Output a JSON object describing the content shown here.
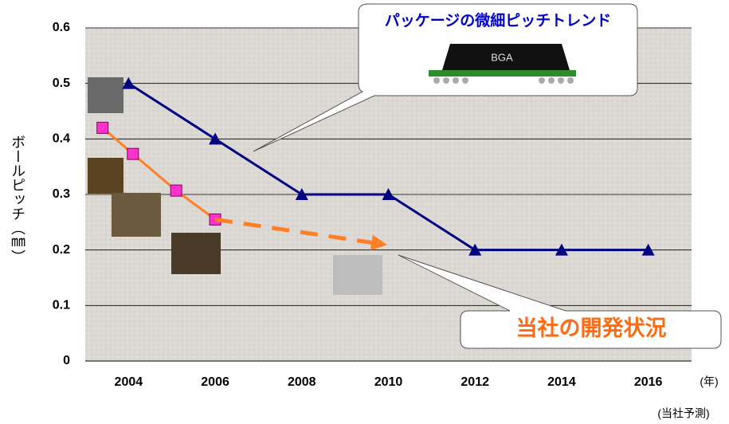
{
  "chart_data": {
    "type": "line",
    "y_label": "ボールピッチ（㎜）",
    "x_unit": "(年)",
    "note": "(当社予測)",
    "callout_trend": "パッケージの微細ピッチトレンド",
    "package_label": "BGA",
    "callout_status": "当社の開発状況",
    "xlim": [
      2003,
      2017
    ],
    "xticks": [
      2004,
      2006,
      2008,
      2010,
      2012,
      2014,
      2016
    ],
    "ylim": [
      0,
      0.6
    ],
    "yticks": [
      0,
      0.1,
      0.2,
      0.3,
      0.4,
      0.5,
      0.6
    ],
    "grid": true,
    "series": [
      {
        "color": "#000080",
        "marker": "triangle",
        "x": [
          2004,
          2006,
          2008,
          2010,
          2012,
          2014,
          2016
        ],
        "values": [
          0.5,
          0.4,
          0.3,
          0.3,
          0.2,
          0.2,
          0.2
        ]
      },
      {
        "color": "#ff7f27",
        "marker": "square",
        "x": [
          2003.4,
          2004.1,
          2005.1,
          2006
        ],
        "values": [
          0.42,
          0.373,
          0.307,
          0.255
        ]
      }
    ],
    "forecast": {
      "color": "#ff7f27",
      "x": [
        2006,
        2009.9
      ],
      "values": [
        0.255,
        0.21
      ]
    }
  }
}
